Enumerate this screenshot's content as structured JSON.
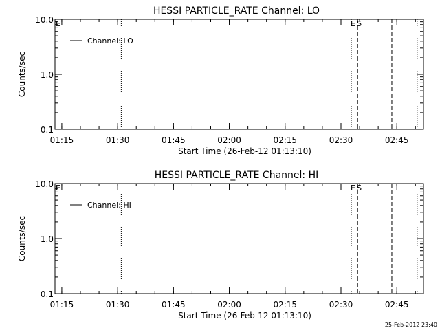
{
  "footer": {
    "timestamp": "25-Feb-2012 23:40"
  },
  "chart_data": [
    {
      "type": "line",
      "title": "HESSI PARTICLE_RATE Channel: LO",
      "xlabel": "Start Time (26-Feb-12 01:13:10)",
      "ylabel": "Counts/sec",
      "x_tick_labels": [
        "01:15",
        "01:30",
        "01:45",
        "02:00",
        "02:15",
        "02:30",
        "02:45"
      ],
      "x_ticks_min": [
        1.8333,
        16.8333,
        31.8333,
        46.8333,
        61.8333,
        76.8333,
        91.8333
      ],
      "xlim_min": [
        0,
        99
      ],
      "y_tick_labels": [
        "0.1",
        "1.0",
        "10.0"
      ],
      "y_ticks": [
        0.1,
        1.0,
        10.0
      ],
      "ylim": [
        0.1,
        10
      ],
      "yscale": "log",
      "grid": false,
      "legend": {
        "position": "top-left",
        "entries": [
          "Channel: LO"
        ]
      },
      "series": [
        {
          "name": "Channel: LO",
          "x_min": [],
          "y": []
        }
      ],
      "markers": [
        {
          "x_min": 0,
          "style": "dotted",
          "label": "E"
        },
        {
          "x_min": 17.8,
          "style": "dotted",
          "label": ""
        },
        {
          "x_min": 79.6,
          "style": "dotted",
          "label": "E"
        },
        {
          "x_min": 81.3,
          "style": "dashed",
          "label": "S"
        },
        {
          "x_min": 90.5,
          "style": "dashed",
          "label": ""
        },
        {
          "x_min": 97.3,
          "style": "dotted",
          "label": ""
        }
      ]
    },
    {
      "type": "line",
      "title": "HESSI PARTICLE_RATE Channel: HI",
      "xlabel": "Start Time (26-Feb-12 01:13:10)",
      "ylabel": "Counts/sec",
      "x_tick_labels": [
        "01:15",
        "01:30",
        "01:45",
        "02:00",
        "02:15",
        "02:30",
        "02:45"
      ],
      "x_ticks_min": [
        1.8333,
        16.8333,
        31.8333,
        46.8333,
        61.8333,
        76.8333,
        91.8333
      ],
      "xlim_min": [
        0,
        99
      ],
      "y_tick_labels": [
        "0.1",
        "1.0",
        "10.0"
      ],
      "y_ticks": [
        0.1,
        1.0,
        10.0
      ],
      "ylim": [
        0.1,
        10
      ],
      "yscale": "log",
      "grid": false,
      "legend": {
        "position": "top-left",
        "entries": [
          "Channel: HI"
        ]
      },
      "series": [
        {
          "name": "Channel: HI",
          "x_min": [],
          "y": []
        }
      ],
      "markers": [
        {
          "x_min": 0,
          "style": "dotted",
          "label": "E"
        },
        {
          "x_min": 17.8,
          "style": "dotted",
          "label": ""
        },
        {
          "x_min": 79.6,
          "style": "dotted",
          "label": "E"
        },
        {
          "x_min": 81.3,
          "style": "dashed",
          "label": "S"
        },
        {
          "x_min": 90.5,
          "style": "dashed",
          "label": ""
        },
        {
          "x_min": 97.3,
          "style": "dotted",
          "label": ""
        }
      ]
    }
  ]
}
